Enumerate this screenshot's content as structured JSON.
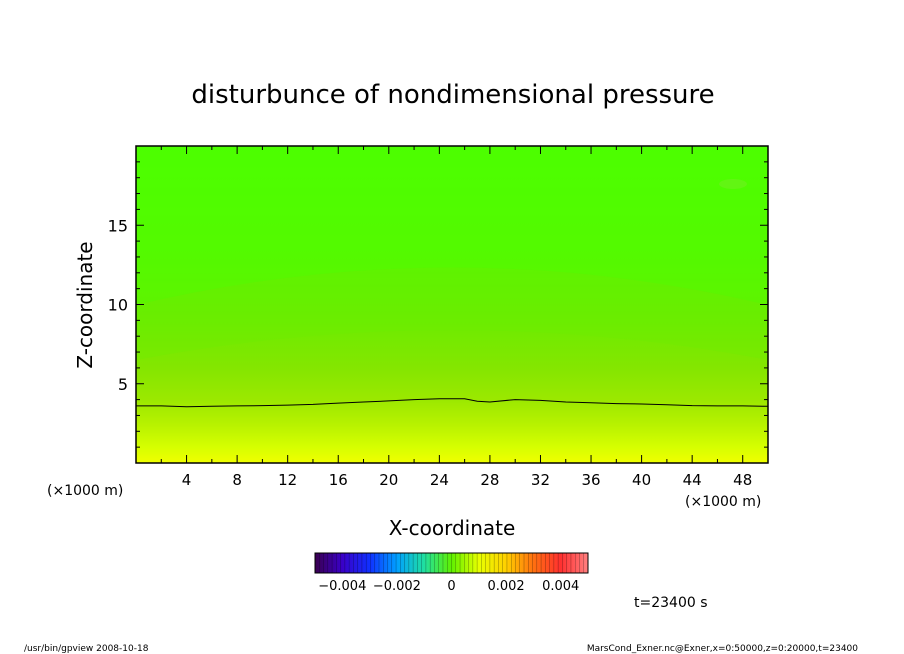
{
  "chart_data": {
    "type": "heatmap",
    "title": "disturbunce of nondimensional pressure",
    "xlabel": "X-coordinate",
    "ylabel": "Z-coordinate",
    "x_unit": "(×1000 m)",
    "y_unit": "(×1000 m)",
    "xlim": [
      0,
      50
    ],
    "ylim": [
      0,
      20
    ],
    "x_ticks": [
      "4",
      "8",
      "12",
      "16",
      "20",
      "24",
      "28",
      "32",
      "36",
      "40",
      "44",
      "48"
    ],
    "y_ticks": [
      "5",
      "10",
      "15"
    ],
    "colorbar": {
      "range": [
        -0.005,
        0.005
      ],
      "tick_labels": [
        "-0.004",
        "-0.002",
        "0",
        "0.002",
        "0.004"
      ],
      "tick_values": [
        -0.004,
        -0.002,
        0,
        0.002,
        0.004
      ]
    },
    "contour_zero": {
      "x": [
        0,
        2,
        4,
        6,
        8,
        10,
        12,
        14,
        16,
        18,
        20,
        22,
        24,
        26,
        27,
        28,
        30,
        32,
        34,
        36,
        38,
        40,
        42,
        44,
        46,
        48,
        50
      ],
      "z": [
        3.6,
        3.6,
        3.55,
        3.58,
        3.6,
        3.62,
        3.65,
        3.7,
        3.78,
        3.85,
        3.92,
        4.0,
        4.05,
        4.05,
        3.9,
        3.85,
        4.0,
        3.95,
        3.85,
        3.8,
        3.75,
        3.72,
        3.68,
        3.62,
        3.6,
        3.6,
        3.58
      ]
    },
    "bands_z": [
      0,
      0.5,
      1,
      1.5,
      2,
      2.5,
      3,
      3.5,
      4,
      5,
      6,
      8,
      10,
      12,
      14,
      16,
      20
    ],
    "colors": {
      "bottom": "#f0ff00",
      "middle": "#7ee600",
      "top": "#4cff00"
    }
  },
  "annotations": {
    "time": "t=23400 s",
    "footer_left": "/usr/bin/gpview   2008-10-18",
    "footer_right": "MarsCond_Exner.nc@Exner,x=0:50000,z=0:20000,t=23400"
  }
}
